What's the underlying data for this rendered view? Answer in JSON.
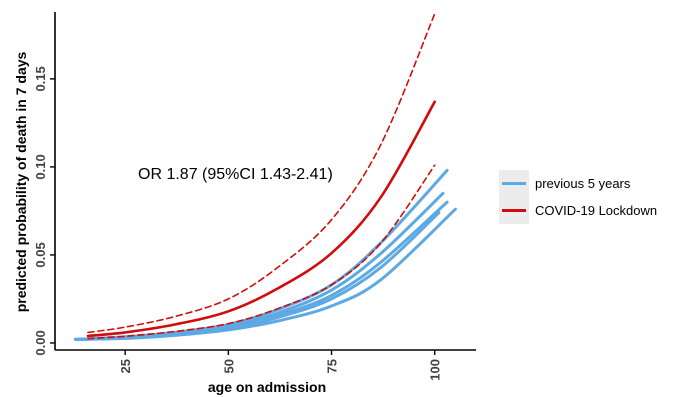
{
  "chart_data": {
    "type": "line",
    "title": "",
    "xlabel": "age on admission",
    "ylabel": "predicted probability of death in 7 days",
    "xlim": [
      8,
      110
    ],
    "ylim": [
      -0.004,
      0.188
    ],
    "x_ticks": [
      25,
      50,
      75,
      100
    ],
    "x_tick_labels": [
      "25",
      "50",
      "75",
      "100"
    ],
    "y_ticks": [
      0.0,
      0.05,
      0.1,
      0.15
    ],
    "y_tick_labels": [
      "0.00",
      "0.05",
      "0.10",
      "0.15"
    ],
    "grid": false,
    "legend_position": "right",
    "annotation": "OR 1.87 (95%CI 1.43-2.41)",
    "legend": [
      {
        "label": "previous 5 years",
        "color": "#5DA9E3"
      },
      {
        "label": "COVID-19 Lockdown",
        "color": "#D10C0C"
      }
    ],
    "series": [
      {
        "name": "previous 5 years",
        "group": "previous",
        "color": "#5DA9E3",
        "style": "solid",
        "x": [
          13,
          25,
          37,
          50,
          62,
          75,
          87,
          103
        ],
        "y": [
          0.002,
          0.0035,
          0.006,
          0.0105,
          0.019,
          0.033,
          0.057,
          0.098
        ]
      },
      {
        "group": "previous",
        "color": "#5DA9E3",
        "style": "solid",
        "x": [
          13,
          25,
          37,
          50,
          62,
          75,
          87,
          102
        ],
        "y": [
          0.002,
          0.003,
          0.0055,
          0.0095,
          0.017,
          0.03,
          0.051,
          0.085
        ]
      },
      {
        "group": "previous",
        "color": "#5DA9E3",
        "style": "solid",
        "x": [
          13,
          25,
          37,
          50,
          62,
          75,
          87,
          103
        ],
        "y": [
          0.002,
          0.003,
          0.005,
          0.0088,
          0.0155,
          0.027,
          0.046,
          0.08
        ]
      },
      {
        "group": "previous",
        "color": "#5DA9E3",
        "style": "solid",
        "x": [
          13,
          25,
          37,
          50,
          62,
          75,
          87,
          101
        ],
        "y": [
          0.002,
          0.0028,
          0.0048,
          0.0083,
          0.0145,
          0.025,
          0.043,
          0.074
        ]
      },
      {
        "group": "previous",
        "color": "#5DA9E3",
        "style": "solid",
        "x": [
          13,
          25,
          37,
          50,
          62,
          75,
          87,
          105
        ],
        "y": [
          0.002,
          0.0026,
          0.0043,
          0.0074,
          0.0125,
          0.021,
          0.036,
          0.076
        ]
      },
      {
        "name": "COVID-19 Lockdown",
        "group": "lockdown",
        "color": "#D10C0C",
        "style": "solid",
        "x": [
          16,
          25,
          37,
          50,
          62,
          75,
          87,
          100
        ],
        "y": [
          0.004,
          0.006,
          0.0105,
          0.018,
          0.031,
          0.051,
          0.083,
          0.137
        ]
      },
      {
        "group": "lockdown",
        "color": "#D10C0C",
        "style": "dashed",
        "x": [
          16,
          25,
          37,
          50,
          62,
          75,
          87,
          100
        ],
        "y": [
          0.006,
          0.009,
          0.015,
          0.025,
          0.043,
          0.07,
          0.113,
          0.187
        ]
      },
      {
        "group": "lockdown",
        "color": "#D10C0C",
        "style": "dashed",
        "x": [
          16,
          25,
          37,
          50,
          62,
          75,
          87,
          100
        ],
        "y": [
          0.0025,
          0.0038,
          0.0065,
          0.011,
          0.0195,
          0.033,
          0.057,
          0.101
        ]
      }
    ]
  }
}
